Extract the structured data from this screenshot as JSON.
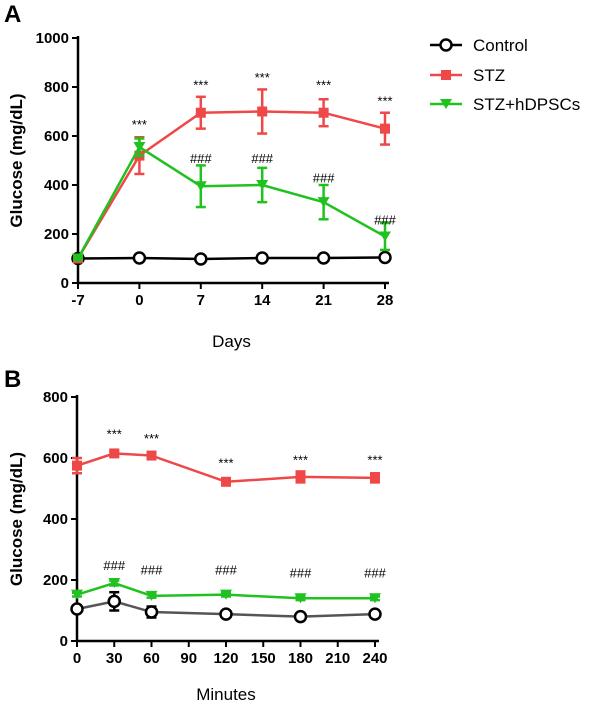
{
  "panels": {
    "a": {
      "letter": "A"
    },
    "b": {
      "letter": "B"
    }
  },
  "colors": {
    "control": "#000000",
    "control_b_line": "#555555",
    "stz": "#ef4848",
    "hdpscs": "#1fc21f"
  },
  "legend": {
    "placement": "top-right",
    "items": [
      "Control",
      "STZ",
      "STZ+hDPSCs"
    ]
  },
  "chart_data": [
    {
      "type": "line",
      "panel": "A",
      "title": "",
      "xlabel": "Days",
      "ylabel": "Glucose (mg/dL)",
      "xlim": [
        -7,
        28
      ],
      "ylim": [
        0,
        1000
      ],
      "x": [
        -7,
        0,
        7,
        14,
        21,
        28
      ],
      "x_tick_labels": [
        "-7",
        "0",
        "7",
        "14",
        "21",
        "28"
      ],
      "y_ticks": [
        0,
        200,
        400,
        600,
        800,
        1000
      ],
      "series": [
        {
          "name": "Control",
          "marker": "circle",
          "values": [
            100,
            102,
            98,
            102,
            102,
            104
          ],
          "errors": [
            5,
            5,
            5,
            5,
            5,
            5
          ]
        },
        {
          "name": "STZ",
          "marker": "square",
          "values": [
            100,
            520,
            695,
            700,
            695,
            630
          ],
          "errors": [
            5,
            75,
            65,
            90,
            55,
            65
          ]
        },
        {
          "name": "STZ+hDPSCs",
          "marker": "triangle-down",
          "values": [
            100,
            555,
            395,
            400,
            330,
            190
          ],
          "errors": [
            5,
            35,
            85,
            70,
            70,
            55
          ]
        }
      ],
      "annotations": [
        {
          "x": 0,
          "y": 650,
          "text": "***"
        },
        {
          "x": 7,
          "y": 810,
          "text": "***"
        },
        {
          "x": 14,
          "y": 840,
          "text": "***"
        },
        {
          "x": 21,
          "y": 810,
          "text": "***"
        },
        {
          "x": 28,
          "y": 745,
          "text": "***"
        },
        {
          "x": 7,
          "y": 510,
          "text": "###"
        },
        {
          "x": 14,
          "y": 510,
          "text": "###"
        },
        {
          "x": 21,
          "y": 430,
          "text": "###"
        },
        {
          "x": 28,
          "y": 260,
          "text": "###"
        }
      ]
    },
    {
      "type": "line",
      "panel": "B",
      "title": "",
      "xlabel": "Minutes",
      "ylabel": "Glucose (mg/dL)",
      "xlim": [
        0,
        240
      ],
      "ylim": [
        0,
        800
      ],
      "x_ticks": [
        0,
        30,
        60,
        90,
        120,
        150,
        180,
        210,
        240
      ],
      "y_ticks": [
        0,
        200,
        400,
        600,
        800
      ],
      "series": [
        {
          "name": "Control",
          "marker": "circle",
          "x": [
            0,
            30,
            60,
            120,
            180,
            240
          ],
          "values": [
            105,
            130,
            95,
            88,
            80,
            88
          ],
          "errors": [
            8,
            30,
            18,
            6,
            6,
            6
          ]
        },
        {
          "name": "STZ",
          "marker": "square",
          "x": [
            0,
            30,
            60,
            120,
            180,
            240
          ],
          "values": [
            575,
            615,
            608,
            522,
            538,
            535
          ],
          "errors": [
            25,
            8,
            8,
            10,
            18,
            15
          ]
        },
        {
          "name": "STZ+hDPSCs",
          "marker": "triangle-down",
          "x": [
            0,
            30,
            60,
            120,
            180,
            240
          ],
          "values": [
            152,
            190,
            148,
            152,
            140,
            140
          ],
          "errors": [
            6,
            8,
            6,
            6,
            6,
            6
          ]
        }
      ],
      "annotations": [
        {
          "x": 30,
          "y": 680,
          "text": "***"
        },
        {
          "x": 60,
          "y": 665,
          "text": "***"
        },
        {
          "x": 120,
          "y": 585,
          "text": "***"
        },
        {
          "x": 180,
          "y": 595,
          "text": "***"
        },
        {
          "x": 240,
          "y": 595,
          "text": "***"
        },
        {
          "x": 30,
          "y": 250,
          "text": "###"
        },
        {
          "x": 60,
          "y": 235,
          "text": "###"
        },
        {
          "x": 120,
          "y": 235,
          "text": "###"
        },
        {
          "x": 180,
          "y": 225,
          "text": "###"
        },
        {
          "x": 240,
          "y": 225,
          "text": "###"
        }
      ]
    }
  ]
}
